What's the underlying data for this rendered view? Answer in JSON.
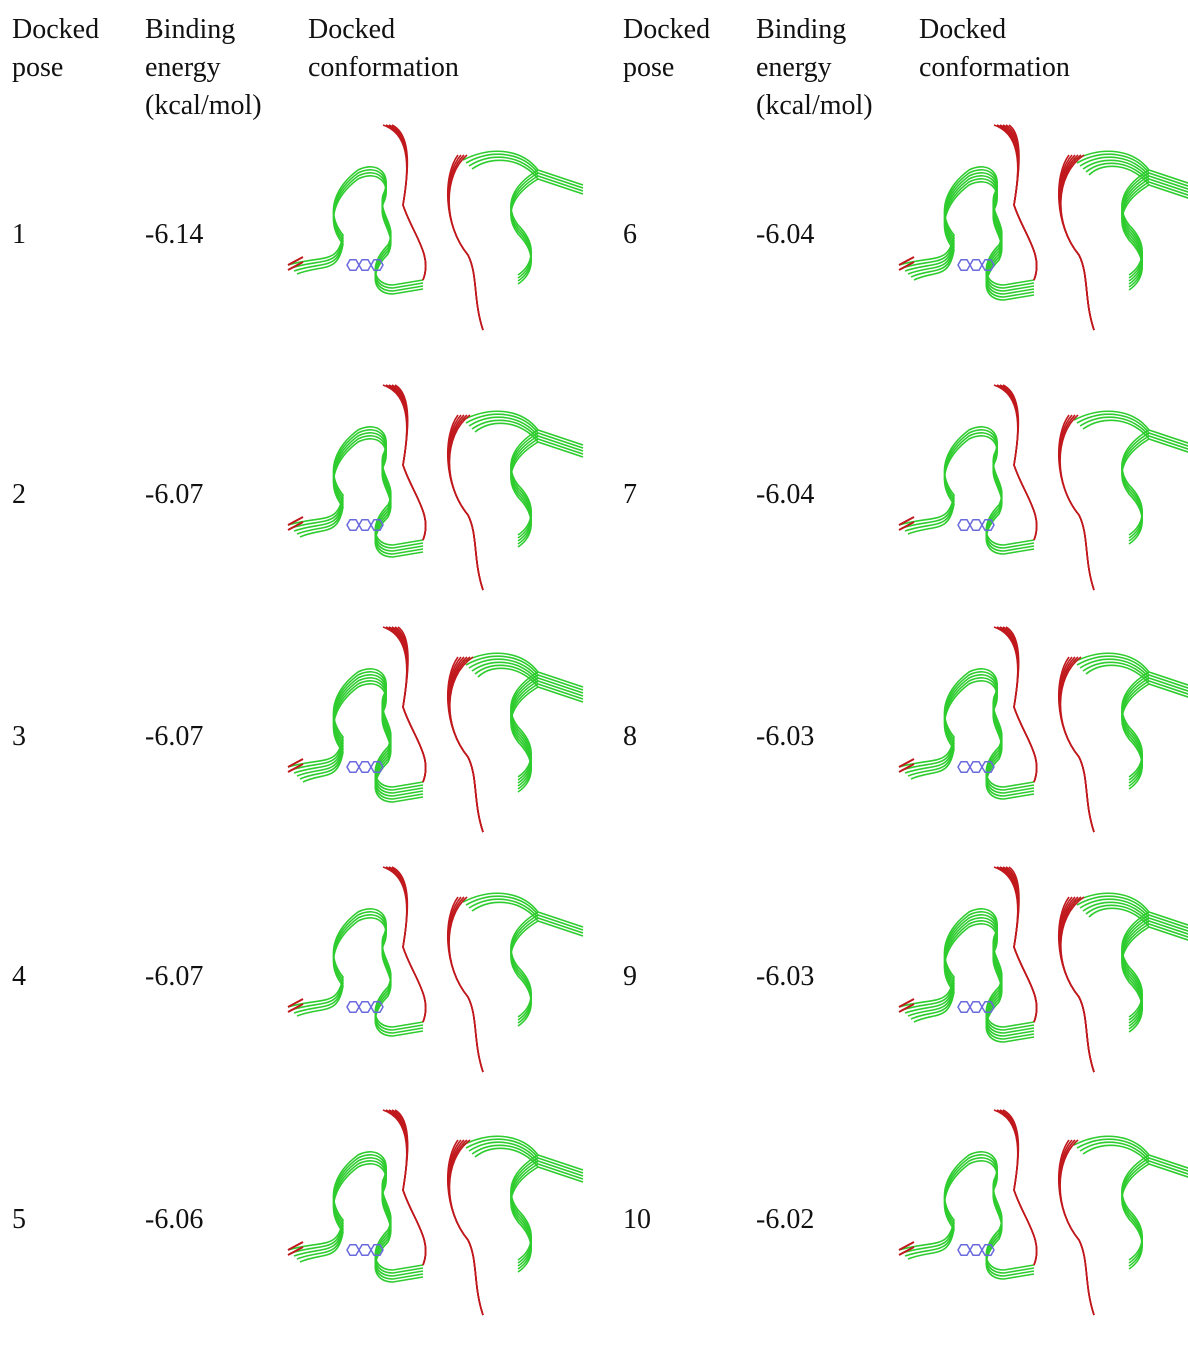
{
  "groups": [
    {
      "header": [
        "Docked pose",
        "Binding energy (kcal/mol)",
        "Docked conformation"
      ],
      "rows": [
        [
          "1",
          "-6.14"
        ],
        [
          "2",
          "-6.07"
        ],
        [
          "3",
          "-6.07"
        ],
        [
          "4",
          "-6.07"
        ],
        [
          "5",
          "-6.06"
        ]
      ]
    },
    {
      "header": [
        "Docked pose",
        "Binding energy (kcal/mol)",
        "Docked conformation"
      ],
      "rows": [
        [
          "6",
          "-6.04"
        ],
        [
          "7",
          "-6.04"
        ],
        [
          "8",
          "-6.03"
        ],
        [
          "9",
          "-6.03"
        ],
        [
          "10",
          "-6.02"
        ]
      ]
    }
  ]
}
